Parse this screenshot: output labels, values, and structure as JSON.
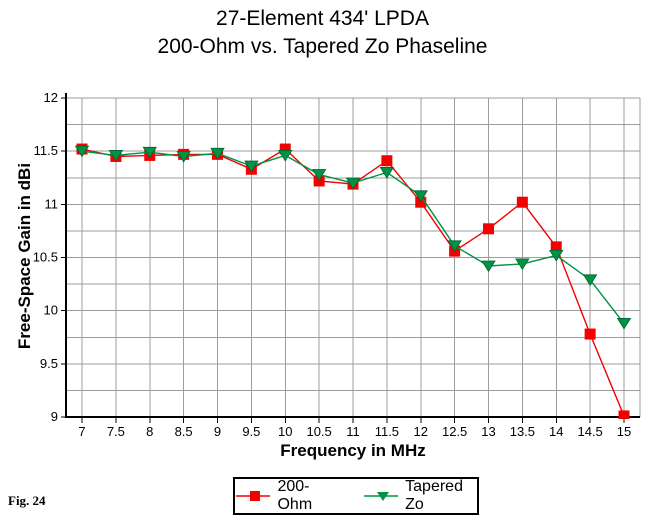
{
  "figure_label": "Fig. 24",
  "title": {
    "line1": "27-Element 434' LPDA",
    "line2": "200-Ohm vs. Tapered Zo Phaseline"
  },
  "chart_data": {
    "type": "line",
    "title": "27-Element 434' LPDA / 200-Ohm vs. Tapered Zo Phaseline",
    "xlabel": "Frequency in MHz",
    "ylabel": "Free-Space Gain in dBi",
    "x": [
      7,
      7.5,
      8,
      8.5,
      9,
      9.5,
      10,
      10.5,
      11,
      11.5,
      12,
      12.5,
      13,
      13.5,
      14,
      14.5,
      15
    ],
    "series": [
      {
        "name": "200-Ohm",
        "marker": "square",
        "color": "#f40000",
        "values": [
          11.52,
          11.45,
          11.46,
          11.47,
          11.47,
          11.33,
          11.52,
          11.22,
          11.19,
          11.41,
          11.02,
          10.56,
          10.77,
          11.02,
          10.6,
          9.78,
          9.01
        ]
      },
      {
        "name": "Tapered Zo",
        "marker": "triangle-down",
        "color": "#009245",
        "values": [
          11.5,
          11.46,
          11.49,
          11.45,
          11.48,
          11.36,
          11.46,
          11.28,
          11.2,
          11.3,
          11.08,
          10.61,
          10.42,
          10.44,
          10.52,
          10.29,
          9.88
        ]
      }
    ],
    "xlim": [
      6.76,
      15.24
    ],
    "ylim": [
      9,
      12
    ],
    "x_tick_labels": [
      "7",
      "7.5",
      "8",
      "8.5",
      "9",
      "9.5",
      "10",
      "10.5",
      "11",
      "11.5",
      "12",
      "12.5",
      "13",
      "13.5",
      "14",
      "14.5",
      "15"
    ],
    "y_tick_labels": [
      "12",
      "11.5",
      "11",
      "10.5",
      "10",
      "9.5",
      "9"
    ],
    "y_ticks": [
      12,
      11.5,
      11,
      10.5,
      10,
      9.5,
      9
    ],
    "y_minor_step": 0.25,
    "grid": true,
    "grid_color": "#9c9c9c",
    "axis_color": "#000000",
    "legend_position": "bottom-center"
  },
  "legend": {
    "items": [
      {
        "label": "200-Ohm",
        "color": "#f40000",
        "marker": "square"
      },
      {
        "label": "Tapered Zo",
        "color": "#009245",
        "marker": "triangle-down"
      }
    ]
  }
}
